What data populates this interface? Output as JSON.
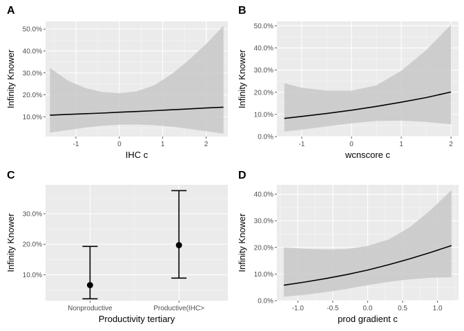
{
  "chart_data": [
    {
      "panel": "A",
      "type": "line",
      "xlabel": "IHC c",
      "ylabel": "Infinity Knower",
      "xlim": [
        -1.7,
        2.5
      ],
      "ylim": [
        0.01,
        0.535
      ],
      "xticks": [
        -1,
        0,
        1,
        2
      ],
      "xtick_labels": [
        "-1",
        "0",
        "1",
        "2"
      ],
      "yticks": [
        0.1,
        0.2,
        0.3,
        0.4,
        0.5
      ],
      "ytick_labels": [
        "10.0%",
        "20.0%",
        "30.0%",
        "40.0%",
        "50.0%"
      ],
      "grid": true,
      "x": [
        -1.6,
        -1.2,
        -0.8,
        -0.4,
        0.0,
        0.4,
        0.8,
        1.2,
        1.6,
        2.0,
        2.4
      ],
      "y": [
        0.107,
        0.111,
        0.114,
        0.117,
        0.121,
        0.124,
        0.128,
        0.132,
        0.136,
        0.14,
        0.144
      ],
      "lower": [
        0.028,
        0.039,
        0.05,
        0.059,
        0.064,
        0.065,
        0.062,
        0.055,
        0.045,
        0.034,
        0.023
      ],
      "upper": [
        0.323,
        0.267,
        0.232,
        0.213,
        0.207,
        0.216,
        0.244,
        0.294,
        0.359,
        0.432,
        0.515
      ]
    },
    {
      "panel": "B",
      "type": "line",
      "xlabel": "wcnscore c",
      "ylabel": "Infinity Knower",
      "xlim": [
        -1.5,
        2.15
      ],
      "ylim": [
        0.0,
        0.52
      ],
      "xticks": [
        -1,
        0,
        1,
        2
      ],
      "xtick_labels": [
        "-1",
        "0",
        "1",
        "2"
      ],
      "yticks": [
        0.0,
        0.1,
        0.2,
        0.3,
        0.4,
        0.5
      ],
      "ytick_labels": [
        "0.0%",
        "10.0%",
        "20.0%",
        "30.0%",
        "40.0%",
        "50.0%"
      ],
      "grid": true,
      "x": [
        -1.35,
        -1.0,
        -0.5,
        0.0,
        0.5,
        1.0,
        1.5,
        2.0
      ],
      "y": [
        0.082,
        0.091,
        0.104,
        0.119,
        0.136,
        0.155,
        0.176,
        0.201
      ],
      "lower": [
        0.022,
        0.031,
        0.046,
        0.06,
        0.07,
        0.072,
        0.066,
        0.055
      ],
      "upper": [
        0.241,
        0.22,
        0.207,
        0.207,
        0.231,
        0.297,
        0.39,
        0.505
      ]
    },
    {
      "panel": "C",
      "type": "scatter",
      "xlabel": "Productivity tertiary",
      "ylabel": "Infinity Knower",
      "categories": [
        "Nonproductive",
        "Productive(IHC>"
      ],
      "xlim": [
        0.5,
        2.55
      ],
      "ylim": [
        0.015,
        0.395
      ],
      "yticks": [
        0.1,
        0.2,
        0.3
      ],
      "ytick_labels": [
        "10.0%",
        "20.0%",
        "30.0%"
      ],
      "grid": true,
      "values": [
        0.066,
        0.197
      ],
      "lower": [
        0.021,
        0.089
      ],
      "upper": [
        0.193,
        0.376
      ]
    },
    {
      "panel": "D",
      "type": "line",
      "xlabel": "prod gradient c",
      "ylabel": "Infinity Knower",
      "xlim": [
        -1.3,
        1.3
      ],
      "ylim": [
        0.0,
        0.435
      ],
      "xticks": [
        -1.0,
        -0.5,
        0.0,
        0.5,
        1.0
      ],
      "xtick_labels": [
        "-1.0",
        "-0.5",
        "0.0",
        "0.5",
        "1.0"
      ],
      "yticks": [
        0.0,
        0.1,
        0.2,
        0.3,
        0.4
      ],
      "ytick_labels": [
        "0.0%",
        "10.0%",
        "20.0%",
        "30.0%",
        "40.0%"
      ],
      "grid": true,
      "x": [
        -1.2,
        -0.9,
        -0.6,
        -0.3,
        0.0,
        0.3,
        0.6,
        0.9,
        1.2
      ],
      "y": [
        0.058,
        0.07,
        0.083,
        0.098,
        0.115,
        0.135,
        0.157,
        0.181,
        0.207
      ],
      "lower": [
        0.015,
        0.022,
        0.032,
        0.044,
        0.058,
        0.071,
        0.08,
        0.086,
        0.088
      ],
      "upper": [
        0.2,
        0.195,
        0.192,
        0.194,
        0.205,
        0.23,
        0.275,
        0.34,
        0.415
      ]
    }
  ]
}
